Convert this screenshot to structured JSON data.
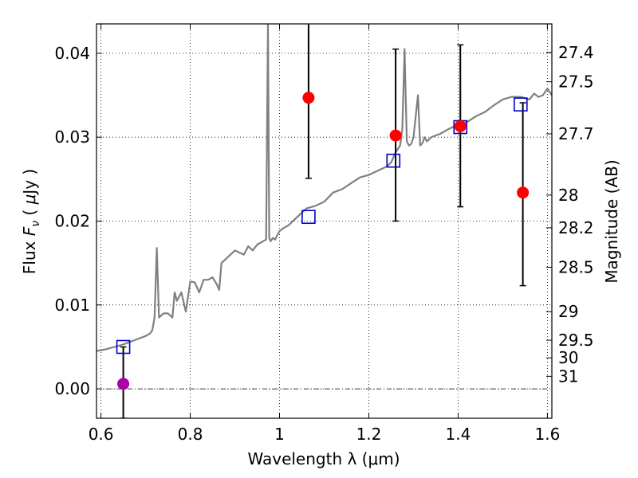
{
  "chart_data": {
    "type": "scatter",
    "xlabel": "Wavelength  λ (μm)",
    "ylabel": "Flux  F_ν  ( μJy )",
    "ylabel_parts": [
      "Flux  ",
      "F",
      "ν",
      "  (  ",
      "μ",
      "Jy )"
    ],
    "ylabel_right": "Magnitude (AB)",
    "xlim": [
      0.59,
      1.61
    ],
    "ylim": [
      -0.0035,
      0.0435
    ],
    "x_ticks": [
      0.6,
      0.8,
      1.0,
      1.2,
      1.4,
      1.6
    ],
    "x_tick_labels": [
      "0.6",
      "0.8",
      "1",
      "1.2",
      "1.4",
      "1.6"
    ],
    "y_ticks": [
      0.0,
      0.01,
      0.02,
      0.03,
      0.04
    ],
    "y_tick_labels": [
      "0.00",
      "0.01",
      "0.02",
      "0.03",
      "0.04"
    ],
    "mag_ticks": [
      {
        "label": "27.4",
        "flux": 0.0401
      },
      {
        "label": "27.5",
        "flux": 0.0366
      },
      {
        "label": "27.7",
        "flux": 0.0304
      },
      {
        "label": "28",
        "flux": 0.0231
      },
      {
        "label": "28.2",
        "flux": 0.0192
      },
      {
        "label": "28.5",
        "flux": 0.0145
      },
      {
        "label": "29",
        "flux": 0.0092
      },
      {
        "label": "29.5",
        "flux": 0.0058
      },
      {
        "label": "30",
        "flux": 0.0037
      },
      {
        "label": "31",
        "flux": 0.0015
      }
    ],
    "grid": true,
    "zero_line": true,
    "series": [
      {
        "kind": "spectrum-line",
        "color": "#808080",
        "x": [
          0.59,
          0.61,
          0.63,
          0.65,
          0.67,
          0.69,
          0.7,
          0.71,
          0.715,
          0.72,
          0.725,
          0.73,
          0.74,
          0.75,
          0.76,
          0.765,
          0.77,
          0.78,
          0.79,
          0.8,
          0.81,
          0.82,
          0.83,
          0.84,
          0.85,
          0.86,
          0.865,
          0.87,
          0.88,
          0.9,
          0.92,
          0.93,
          0.94,
          0.95,
          0.96,
          0.97,
          0.974,
          0.977,
          0.98,
          0.985,
          0.99,
          1.0,
          1.01,
          1.02,
          1.04,
          1.06,
          1.08,
          1.1,
          1.12,
          1.14,
          1.16,
          1.18,
          1.2,
          1.22,
          1.24,
          1.25,
          1.26,
          1.27,
          1.275,
          1.28,
          1.285,
          1.29,
          1.295,
          1.3,
          1.31,
          1.315,
          1.32,
          1.325,
          1.33,
          1.34,
          1.36,
          1.38,
          1.4,
          1.42,
          1.44,
          1.46,
          1.48,
          1.5,
          1.52,
          1.54,
          1.56,
          1.57,
          1.58,
          1.59,
          1.6,
          1.61
        ],
        "y": [
          0.0045,
          0.0047,
          0.005,
          0.0053,
          0.0057,
          0.0061,
          0.0063,
          0.0066,
          0.007,
          0.0085,
          0.0168,
          0.0085,
          0.009,
          0.009,
          0.0085,
          0.0115,
          0.0105,
          0.0115,
          0.0092,
          0.0128,
          0.0127,
          0.0115,
          0.013,
          0.013,
          0.0133,
          0.0124,
          0.0118,
          0.015,
          0.0155,
          0.0165,
          0.016,
          0.017,
          0.0165,
          0.0172,
          0.0175,
          0.0178,
          0.0435,
          0.018,
          0.0176,
          0.018,
          0.0178,
          0.0188,
          0.0192,
          0.0195,
          0.0205,
          0.0215,
          0.0218,
          0.0223,
          0.0234,
          0.0238,
          0.0245,
          0.0252,
          0.0255,
          0.026,
          0.0265,
          0.027,
          0.0282,
          0.029,
          0.031,
          0.0405,
          0.0295,
          0.029,
          0.0292,
          0.03,
          0.035,
          0.029,
          0.0293,
          0.03,
          0.0295,
          0.03,
          0.0304,
          0.031,
          0.0315,
          0.0318,
          0.0325,
          0.033,
          0.0338,
          0.0345,
          0.0348,
          0.0348,
          0.0345,
          0.0352,
          0.0348,
          0.035,
          0.0358,
          0.035
        ]
      },
      {
        "kind": "model-boxes",
        "color": "#0000cc",
        "x": [
          0.65,
          1.065,
          1.255,
          1.405,
          1.54
        ],
        "y": [
          0.005,
          0.0205,
          0.0272,
          0.0312,
          0.0339
        ]
      },
      {
        "kind": "measured-points",
        "color": "#ff0000",
        "x": [
          1.065,
          1.26,
          1.405,
          1.545
        ],
        "y": [
          0.0347,
          0.0302,
          0.0313,
          0.0234
        ],
        "err_low": [
          0.0251,
          0.02,
          0.0217,
          0.0123
        ],
        "err_high": [
          0.0455,
          0.0405,
          0.041,
          0.0341
        ]
      },
      {
        "kind": "upper-limit",
        "color": "#aa00aa",
        "x": [
          0.65
        ],
        "y": [
          0.0006
        ],
        "err_low": [
          -0.0035
        ],
        "err_high": [
          0.005
        ]
      }
    ]
  }
}
